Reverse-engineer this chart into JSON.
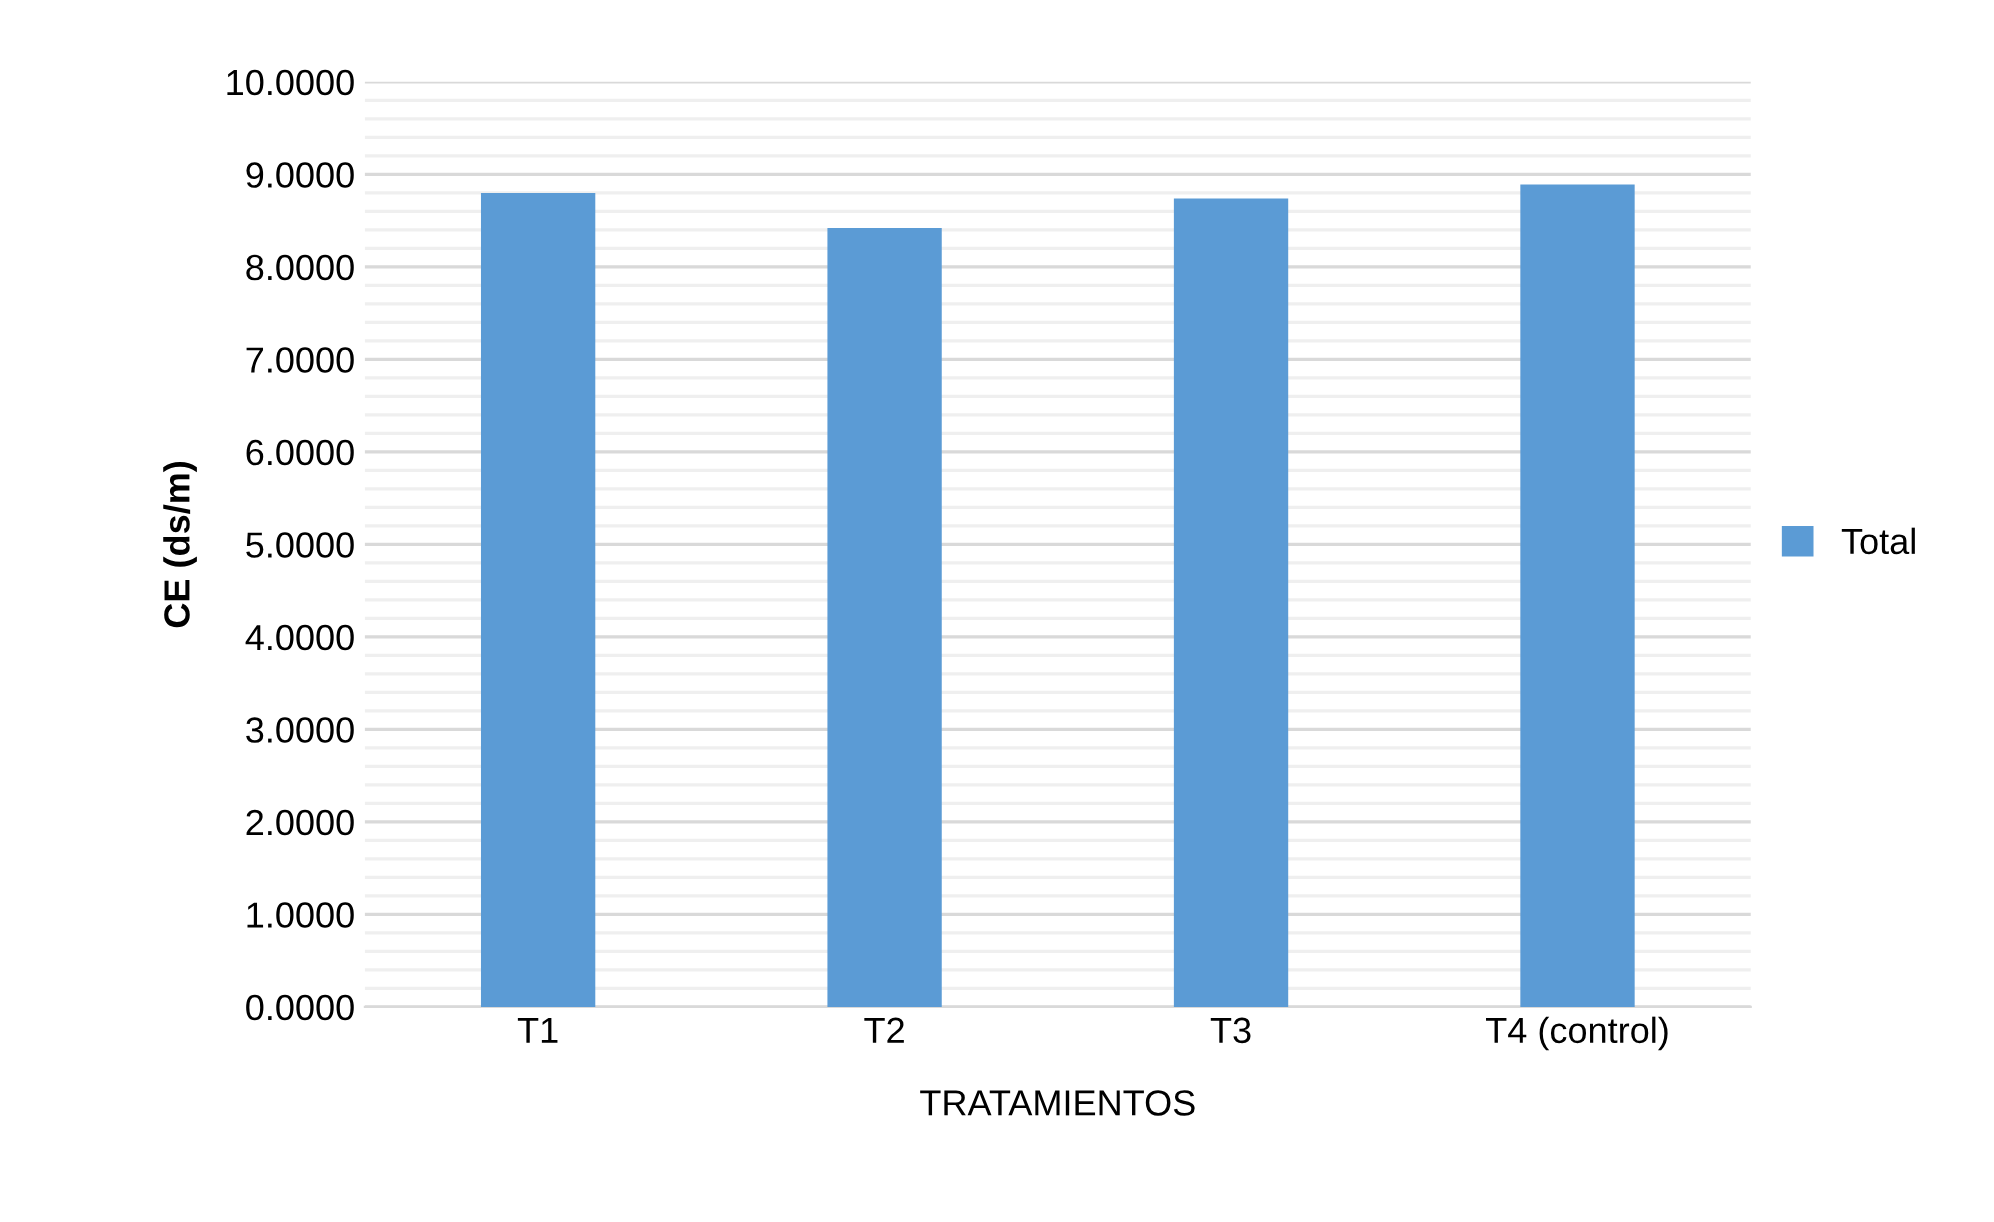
{
  "chart_data": {
    "type": "bar",
    "xlabel": "TRATAMIENTOS",
    "ylabel": "CE (ds/m)",
    "categories": [
      "T1",
      "T2",
      "T3",
      "T4 (control)"
    ],
    "series": [
      {
        "name": "Total",
        "color": "#5b9bd5",
        "values": [
          8.8,
          8.42,
          8.74,
          8.89
        ]
      }
    ],
    "ylim": [
      0,
      10
    ],
    "yticks": [
      {
        "value": 0,
        "label": "0.0000"
      },
      {
        "value": 0.2,
        "label": null
      },
      {
        "value": 0.4,
        "label": null
      },
      {
        "value": 0.6,
        "label": null
      },
      {
        "value": 0.8,
        "label": null
      },
      {
        "value": 1,
        "label": "1.0000"
      },
      {
        "value": 1.2,
        "label": null
      },
      {
        "value": 1.4,
        "label": null
      },
      {
        "value": 1.6,
        "label": null
      },
      {
        "value": 1.8,
        "label": null
      },
      {
        "value": 2,
        "label": "2.0000"
      },
      {
        "value": 2.2,
        "label": null
      },
      {
        "value": 2.4,
        "label": null
      },
      {
        "value": 2.6,
        "label": null
      },
      {
        "value": 2.8,
        "label": null
      },
      {
        "value": 3,
        "label": "3.0000"
      },
      {
        "value": 3.2,
        "label": null
      },
      {
        "value": 3.4,
        "label": null
      },
      {
        "value": 3.6,
        "label": null
      },
      {
        "value": 3.8,
        "label": null
      },
      {
        "value": 4,
        "label": "4.0000"
      },
      {
        "value": 4.2,
        "label": null
      },
      {
        "value": 4.4,
        "label": null
      },
      {
        "value": 4.6,
        "label": null
      },
      {
        "value": 4.8,
        "label": null
      },
      {
        "value": 5,
        "label": "5.0000"
      },
      {
        "value": 5.2,
        "label": null
      },
      {
        "value": 5.4,
        "label": null
      },
      {
        "value": 5.6,
        "label": null
      },
      {
        "value": 5.8,
        "label": null
      },
      {
        "value": 6,
        "label": "6.0000"
      },
      {
        "value": 6.2,
        "label": null
      },
      {
        "value": 6.4,
        "label": null
      },
      {
        "value": 6.6,
        "label": null
      },
      {
        "value": 6.8,
        "label": null
      },
      {
        "value": 7,
        "label": "7.0000"
      },
      {
        "value": 7.2,
        "label": null
      },
      {
        "value": 7.4,
        "label": null
      },
      {
        "value": 7.6,
        "label": null
      },
      {
        "value": 7.8,
        "label": null
      },
      {
        "value": 8,
        "label": "8.0000"
      },
      {
        "value": 8.2,
        "label": null
      },
      {
        "value": 8.4,
        "label": null
      },
      {
        "value": 8.6,
        "label": null
      },
      {
        "value": 8.8,
        "label": null
      },
      {
        "value": 9,
        "label": "9.0000"
      },
      {
        "value": 9.2,
        "label": null
      },
      {
        "value": 9.4,
        "label": null
      },
      {
        "value": 9.6,
        "label": null
      },
      {
        "value": 9.8,
        "label": null
      },
      {
        "value": 10,
        "label": "10.0000"
      }
    ],
    "grid": "y",
    "legend": "right"
  }
}
